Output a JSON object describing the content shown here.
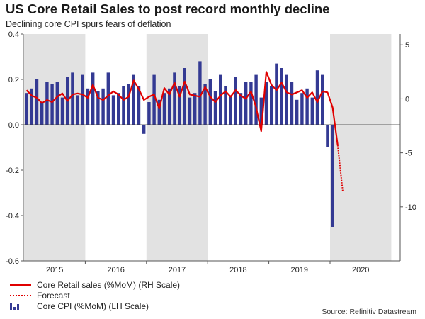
{
  "title": "US Core Retail Sales to post record monthly decline",
  "subtitle": "Declining core CPI spurs fears of deflation",
  "source": "Source: Refinitiv Datastream",
  "legend": {
    "retail": "Core Retail sales (%MoM) (RH Scale)",
    "forecast": "Forecast",
    "cpi": "Core CPI (%MoM) (LH Scale)"
  },
  "colors": {
    "bar": "#343a93",
    "line": "#e00000",
    "shade": "#e2e2e2",
    "axis": "#555555"
  },
  "chart_data": {
    "type": "bar+line",
    "title": "US Core Retail Sales to post record monthly decline",
    "subtitle": "Declining core CPI spurs fears of deflation",
    "x_labels": [
      "2015",
      "2016",
      "2017",
      "2018",
      "2019",
      "2020"
    ],
    "shaded_years": [
      "2015",
      "2017",
      "2020"
    ],
    "left_axis": {
      "label": "Core CPI (%MoM)",
      "ylim": [
        -0.6,
        0.4
      ],
      "ticks": [
        "0.4",
        "0.2",
        "0.0",
        "-0.2",
        "-0.4",
        "-0.6"
      ]
    },
    "right_axis": {
      "label": "Core Retail sales (%MoM)",
      "ylim": [
        -15,
        6
      ],
      "ticks": [
        "5",
        "0",
        "-5",
        "-10"
      ]
    },
    "series": [
      {
        "name": "Core CPI (%MoM) (LH Scale)",
        "type": "bar",
        "axis": "left",
        "values": [
          0.14,
          0.16,
          0.2,
          0.1,
          0.19,
          0.18,
          0.19,
          0.12,
          0.21,
          0.23,
          0.13,
          0.22,
          0.16,
          0.23,
          0.15,
          0.16,
          0.23,
          0.13,
          0.14,
          0.17,
          0.18,
          0.22,
          0.17,
          -0.04,
          0.1,
          0.22,
          0.11,
          0.14,
          0.16,
          0.23,
          0.17,
          0.25,
          0.12,
          0.14,
          0.28,
          0.18,
          0.2,
          0.15,
          0.22,
          0.17,
          0.13,
          0.21,
          0.14,
          0.19,
          0.19,
          0.22,
          0.12,
          0.19,
          0.17,
          0.27,
          0.25,
          0.22,
          0.19,
          0.11,
          0.14,
          0.16,
          0.12,
          0.24,
          0.22,
          -0.1,
          -0.45
        ]
      },
      {
        "name": "Core Retail sales (%MoM) (RH Scale)",
        "type": "line",
        "axis": "right",
        "values": [
          0.8,
          0.3,
          0.1,
          -0.4,
          -0.1,
          -0.3,
          0.2,
          0.5,
          -0.2,
          0.4,
          0.5,
          0.4,
          0.1,
          1.3,
          0.1,
          -0.1,
          0.3,
          0.7,
          0.4,
          -0.1,
          0.2,
          1.7,
          0.9,
          -0.1,
          0.2,
          0.4,
          -0.9,
          1.0,
          0.4,
          1.5,
          0.2,
          1.6,
          0.4,
          0.3,
          0.2,
          1.1,
          0.2,
          -0.3,
          0.3,
          0.7,
          0.2,
          0.8,
          0.3,
          0.0,
          0.7,
          -0.8,
          -3.0,
          2.5,
          1.3,
          0.8,
          1.5,
          0.6,
          0.4,
          0.6,
          0.8,
          0.1,
          0.6,
          -0.3,
          0.7,
          0.6,
          -0.8,
          -4.3
        ]
      },
      {
        "name": "Forecast",
        "type": "line-dotted",
        "axis": "right",
        "values": [
          -4.3,
          -8.6
        ]
      }
    ]
  }
}
